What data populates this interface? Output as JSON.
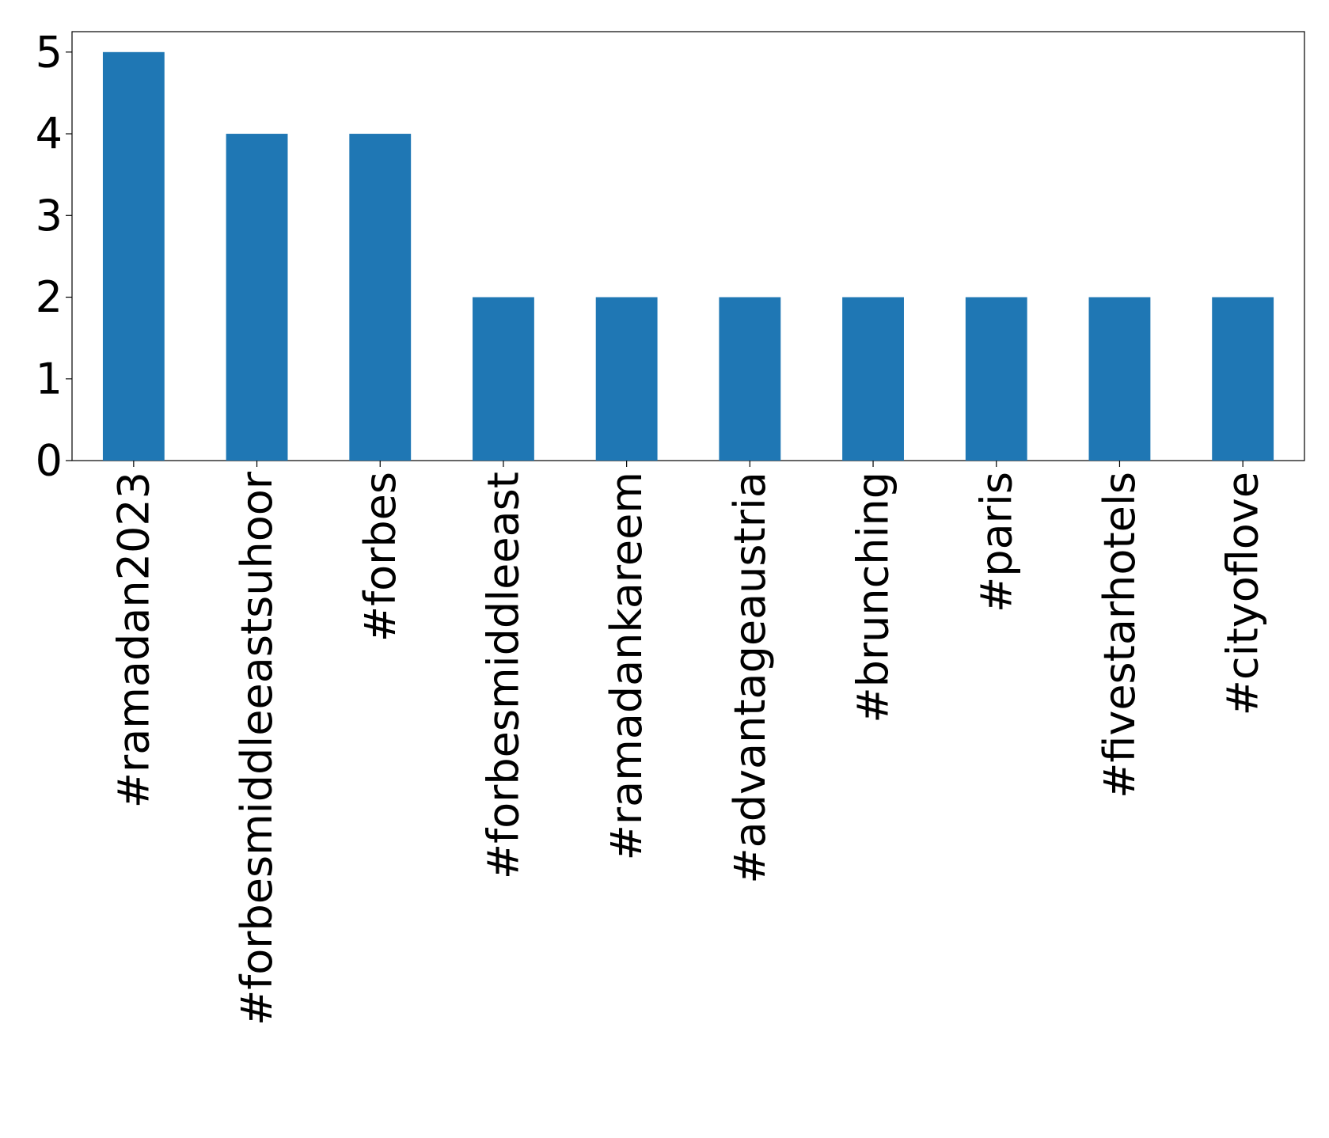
{
  "chart_data": {
    "type": "bar",
    "categories": [
      "#ramadan2023",
      "#forbesmiddleeastsuhoor",
      "#forbes",
      "#forbesmiddleeast",
      "#ramadankareem",
      "#advantageaustria",
      "#brunching",
      "#paris",
      "#fivestarhotels",
      "#cityoflove"
    ],
    "values": [
      5,
      4,
      4,
      2,
      2,
      2,
      2,
      2,
      2,
      2
    ],
    "color": "#1f77b4",
    "ylim": [
      0,
      5.25
    ],
    "yticks": [
      0,
      1,
      2,
      3,
      4,
      5
    ],
    "grid": false
  }
}
